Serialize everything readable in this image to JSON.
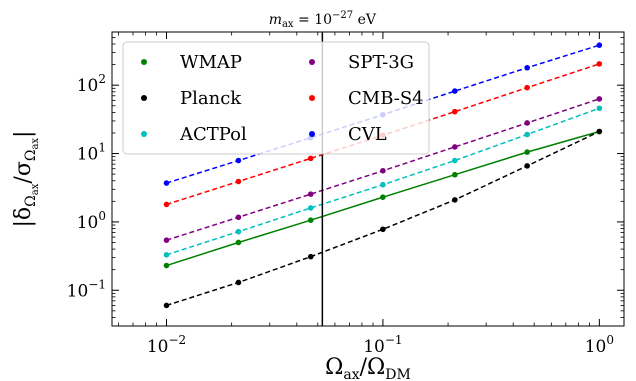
{
  "chart_data": {
    "type": "line",
    "title": "",
    "xlabel": "Ω_ax/Ω_DM",
    "ylabel": "|δ_Ωax/σ_Ωax|",
    "xscale": "log",
    "yscale": "log",
    "xlim": [
      0.0056,
      1.3
    ],
    "ylim": [
      0.03,
      600
    ],
    "grid": false,
    "legend_position": "top-left",
    "x": [
      0.01,
      0.0215,
      0.0464,
      0.1,
      0.215,
      0.464,
      1.0
    ],
    "series": [
      {
        "name": "WMAP",
        "color": "#008000",
        "linestyle": "solid",
        "values": [
          0.23,
          0.5,
          1.06,
          2.3,
          4.9,
          10.5,
          21
        ]
      },
      {
        "name": "Planck",
        "color": "#000000",
        "linestyle": "dashed",
        "values": [
          0.06,
          0.13,
          0.31,
          0.78,
          2.1,
          6.6,
          21
        ]
      },
      {
        "name": "ACTPol",
        "color": "#00bfbf",
        "linestyle": "dashed",
        "values": [
          0.33,
          0.72,
          1.6,
          3.5,
          7.9,
          19,
          46
        ]
      },
      {
        "name": "SPT-3G",
        "color": "#800080",
        "linestyle": "dashed",
        "values": [
          0.54,
          1.17,
          2.55,
          5.6,
          12.5,
          28,
          63
        ]
      },
      {
        "name": "CMB-S4",
        "color": "#ff0000",
        "linestyle": "dashed",
        "values": [
          1.8,
          3.9,
          8.5,
          18.5,
          41,
          92,
          205
        ]
      },
      {
        "name": "CVL",
        "color": "#0000ff",
        "linestyle": "dashed",
        "values": [
          3.7,
          7.9,
          17,
          37,
          82,
          180,
          385
        ]
      }
    ],
    "annotations": [
      {
        "type": "vline",
        "x": 0.0525,
        "label": "m_ax = 10^{-27} eV"
      }
    ],
    "x_ticks": [
      {
        "value": 0.01,
        "base": "10",
        "exp": "−2"
      },
      {
        "value": 0.1,
        "base": "10",
        "exp": "−1"
      },
      {
        "value": 1,
        "base": "10",
        "exp": "0"
      }
    ],
    "y_ticks": [
      {
        "value": 0.1,
        "base": "10",
        "exp": "−1"
      },
      {
        "value": 1,
        "base": "10",
        "exp": "0"
      },
      {
        "value": 10,
        "base": "10",
        "exp": "1"
      },
      {
        "value": 100,
        "base": "10",
        "exp": "2"
      }
    ]
  }
}
